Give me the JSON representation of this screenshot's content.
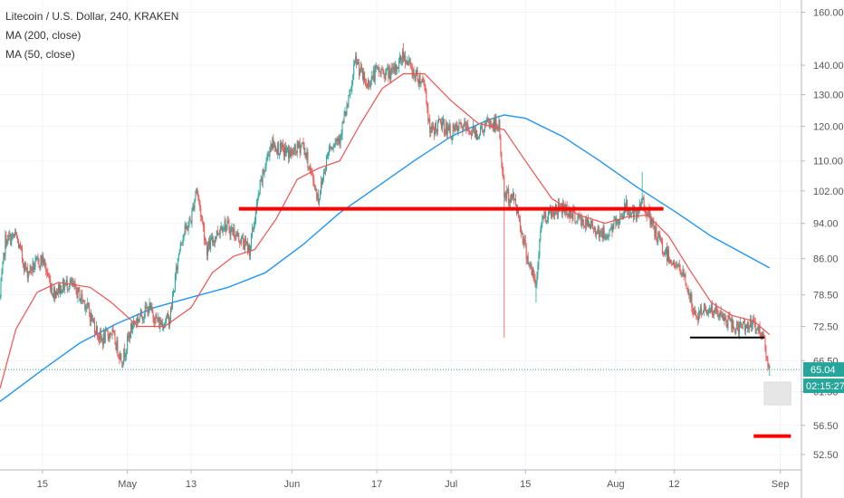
{
  "legend": {
    "symbol": "Litecoin / U.S. Dollar, 240, KRAKEN",
    "ma200": "MA (200, close)",
    "ma50": "MA (50, close)"
  },
  "colors": {
    "up": "#26a69a",
    "down": "#ef5350",
    "ma50": "#ef5350",
    "ma200": "#2196f3",
    "annotation_red": "#ff0000",
    "annotation_black": "#000000",
    "price_line": "#26a69a",
    "badge_bg": "#26a69a"
  },
  "price_badge": {
    "price": "65.04",
    "countdown": "02:15:27"
  },
  "chart_data": {
    "type": "candlestick",
    "title": "Litecoin / U.S. Dollar, 240, KRAKEN",
    "xlabel": "",
    "ylabel": "",
    "y_scale": "log",
    "ylim": [
      50.5,
      165
    ],
    "grid": true,
    "y_ticks": [
      "52.50",
      "56.50",
      "61.50",
      "66.50",
      "72.50",
      "78.50",
      "86.00",
      "94.00",
      "102.00",
      "110.00",
      "120.00",
      "130.00",
      "140.00",
      "160.00"
    ],
    "x_ticks": [
      "15",
      "May",
      "13",
      "Jun",
      "17",
      "Jul",
      "15",
      "Aug",
      "12",
      "Sep"
    ],
    "xlim": [
      "2019-04-07",
      "2019-09-05"
    ],
    "last_price": 65.04,
    "close_path": [
      [
        "2019-04-07",
        78.0
      ],
      [
        "2019-04-08",
        90.0
      ],
      [
        "2019-04-10",
        91.0
      ],
      [
        "2019-04-12",
        83.0
      ],
      [
        "2019-04-15",
        86.0
      ],
      [
        "2019-04-17",
        79.0
      ],
      [
        "2019-04-20",
        81.0
      ],
      [
        "2019-04-23",
        77.0
      ],
      [
        "2019-04-26",
        70.0
      ],
      [
        "2019-04-28",
        71.5
      ],
      [
        "2019-04-30",
        66.5
      ],
      [
        "2019-05-02",
        73.0
      ],
      [
        "2019-05-05",
        76.0
      ],
      [
        "2019-05-07",
        73.0
      ],
      [
        "2019-05-09",
        74.0
      ],
      [
        "2019-05-11",
        90.0
      ],
      [
        "2019-05-13",
        95.0
      ],
      [
        "2019-05-14",
        103.0
      ],
      [
        "2019-05-16",
        88.0
      ],
      [
        "2019-05-19",
        94.0
      ],
      [
        "2019-05-21",
        92.0
      ],
      [
        "2019-05-24",
        88.0
      ],
      [
        "2019-05-26",
        103.0
      ],
      [
        "2019-05-28",
        115.0
      ],
      [
        "2019-05-30",
        113.0
      ],
      [
        "2019-06-01",
        112.0
      ],
      [
        "2019-06-03",
        115.0
      ],
      [
        "2019-06-06",
        100.0
      ],
      [
        "2019-06-08",
        114.0
      ],
      [
        "2019-06-10",
        117.0
      ],
      [
        "2019-06-12",
        130.0
      ],
      [
        "2019-06-13",
        142.0
      ],
      [
        "2019-06-15",
        133.0
      ],
      [
        "2019-06-17",
        138.0
      ],
      [
        "2019-06-20",
        137.0
      ],
      [
        "2019-06-22",
        144.0
      ],
      [
        "2019-06-24",
        137.0
      ],
      [
        "2019-06-26",
        134.0
      ],
      [
        "2019-06-27",
        118.0
      ],
      [
        "2019-06-29",
        121.0
      ],
      [
        "2019-07-01",
        118.0
      ],
      [
        "2019-07-03",
        120.0
      ],
      [
        "2019-07-06",
        118.0
      ],
      [
        "2019-07-08",
        121.0
      ],
      [
        "2019-07-10",
        120.0
      ],
      [
        "2019-07-11",
        101.0
      ],
      [
        "2019-07-13",
        100.0
      ],
      [
        "2019-07-15",
        88.0
      ],
      [
        "2019-07-17",
        80.0
      ],
      [
        "2019-07-18",
        95.0
      ],
      [
        "2019-07-20",
        97.0
      ],
      [
        "2019-07-22",
        98.0
      ],
      [
        "2019-07-24",
        96.0
      ],
      [
        "2019-07-26",
        94.0
      ],
      [
        "2019-07-28",
        93.0
      ],
      [
        "2019-07-30",
        91.0
      ],
      [
        "2019-08-01",
        94.0
      ],
      [
        "2019-08-03",
        98.0
      ],
      [
        "2019-08-05",
        95.0
      ],
      [
        "2019-08-06",
        100.0
      ],
      [
        "2019-08-08",
        93.0
      ],
      [
        "2019-08-10",
        88.0
      ],
      [
        "2019-08-12",
        85.0
      ],
      [
        "2019-08-14",
        82.0
      ],
      [
        "2019-08-16",
        74.0
      ],
      [
        "2019-08-18",
        76.0
      ],
      [
        "2019-08-20",
        75.0
      ],
      [
        "2019-08-22",
        73.5
      ],
      [
        "2019-08-24",
        72.0
      ],
      [
        "2019-08-26",
        73.0
      ],
      [
        "2019-08-28",
        72.0
      ],
      [
        "2019-08-29",
        70.0
      ],
      [
        "2019-08-30",
        65.04
      ]
    ],
    "ma200": [
      [
        "2019-04-07",
        60.0
      ],
      [
        "2019-04-15",
        65.0
      ],
      [
        "2019-04-22",
        69.5
      ],
      [
        "2019-04-29",
        73.0
      ],
      [
        "2019-05-06",
        76.0
      ],
      [
        "2019-05-13",
        78.0
      ],
      [
        "2019-05-20",
        80.0
      ],
      [
        "2019-05-27",
        83.0
      ],
      [
        "2019-06-03",
        89.0
      ],
      [
        "2019-06-10",
        96.5
      ],
      [
        "2019-06-17",
        103.0
      ],
      [
        "2019-06-24",
        110.0
      ],
      [
        "2019-07-01",
        117.0
      ],
      [
        "2019-07-08",
        122.0
      ],
      [
        "2019-07-11",
        123.5
      ],
      [
        "2019-07-15",
        122.5
      ],
      [
        "2019-07-22",
        117.0
      ],
      [
        "2019-07-29",
        110.0
      ],
      [
        "2019-08-05",
        103.0
      ],
      [
        "2019-08-12",
        97.0
      ],
      [
        "2019-08-19",
        91.0
      ],
      [
        "2019-08-26",
        86.5
      ],
      [
        "2019-08-30",
        84.0
      ]
    ],
    "ma50": [
      [
        "2019-04-07",
        62.0
      ],
      [
        "2019-04-10",
        72.0
      ],
      [
        "2019-04-14",
        79.0
      ],
      [
        "2019-04-18",
        81.0
      ],
      [
        "2019-04-24",
        80.0
      ],
      [
        "2019-04-28",
        77.0
      ],
      [
        "2019-05-03",
        72.5
      ],
      [
        "2019-05-08",
        72.5
      ],
      [
        "2019-05-13",
        76.0
      ],
      [
        "2019-05-17",
        83.0
      ],
      [
        "2019-05-21",
        86.5
      ],
      [
        "2019-05-25",
        88.0
      ],
      [
        "2019-05-29",
        95.0
      ],
      [
        "2019-06-02",
        105.0
      ],
      [
        "2019-06-06",
        108.0
      ],
      [
        "2019-06-10",
        110.0
      ],
      [
        "2019-06-14",
        121.0
      ],
      [
        "2019-06-18",
        132.0
      ],
      [
        "2019-06-22",
        137.0
      ],
      [
        "2019-06-26",
        137.0
      ],
      [
        "2019-07-01",
        128.0
      ],
      [
        "2019-07-06",
        121.0
      ],
      [
        "2019-07-11",
        119.0
      ],
      [
        "2019-07-15",
        110.0
      ],
      [
        "2019-07-20",
        100.0
      ],
      [
        "2019-07-25",
        96.0
      ],
      [
        "2019-07-30",
        94.0
      ],
      [
        "2019-08-03",
        95.5
      ],
      [
        "2019-08-07",
        96.0
      ],
      [
        "2019-08-11",
        91.0
      ],
      [
        "2019-08-15",
        83.5
      ],
      [
        "2019-08-19",
        77.0
      ],
      [
        "2019-08-23",
        74.5
      ],
      [
        "2019-08-27",
        73.5
      ],
      [
        "2019-08-30",
        71.0
      ]
    ],
    "drawings": [
      {
        "kind": "horizontal_line",
        "color": "#ff0000",
        "price": 97.5,
        "from": "2019-05-22",
        "to": "2019-08-10"
      },
      {
        "kind": "horizontal_line",
        "color": "#000000",
        "price": 70.5,
        "from": "2019-08-15",
        "to": "2019-08-29"
      },
      {
        "kind": "horizontal_line",
        "color": "#ff0000",
        "price": 55.0,
        "from": "2019-08-27",
        "to": "2019-09-03"
      },
      {
        "kind": "shaded_box",
        "color": "#e6e6e6",
        "price_top": 63.0,
        "price_bottom": 59.5,
        "from": "2019-08-29",
        "to": "2019-09-03"
      }
    ]
  }
}
